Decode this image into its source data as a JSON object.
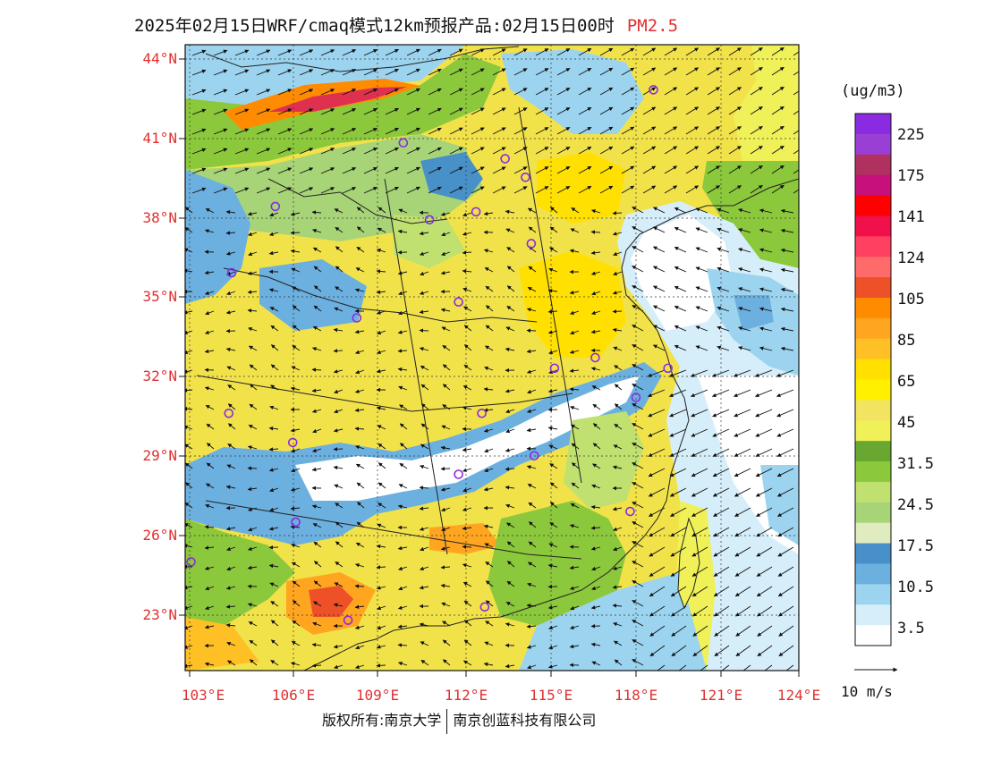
{
  "title": {
    "text": "2025年02月15日WRF/cmaq模式12km预报产品:02月15日00时",
    "species": "PM2.5"
  },
  "map": {
    "lat_labels": [
      "44°N",
      "41°N",
      "38°N",
      "35°N",
      "32°N",
      "29°N",
      "26°N",
      "23°N"
    ],
    "lon_labels": [
      "103°E",
      "106°E",
      "109°E",
      "112°E",
      "115°E",
      "118°E",
      "121°E",
      "124°E"
    ],
    "lat_values": [
      44,
      41,
      38,
      35,
      32,
      29,
      26,
      23
    ],
    "lon_values": [
      103,
      106,
      109,
      112,
      115,
      118,
      121,
      124
    ],
    "extent": {
      "lon_min": 102.9,
      "lon_max": 124.0,
      "lat_min": 20.9,
      "lat_max": 44.5
    },
    "city_markers": [
      {
        "lon": 119.0,
        "lat": 42.8
      },
      {
        "lon": 110.4,
        "lat": 40.8
      },
      {
        "lon": 113.9,
        "lat": 40.2
      },
      {
        "lon": 114.6,
        "lat": 39.5
      },
      {
        "lon": 106.0,
        "lat": 38.4
      },
      {
        "lon": 111.3,
        "lat": 37.9
      },
      {
        "lon": 112.9,
        "lat": 38.2
      },
      {
        "lon": 114.8,
        "lat": 37.0
      },
      {
        "lon": 104.5,
        "lat": 35.9
      },
      {
        "lon": 112.3,
        "lat": 34.8
      },
      {
        "lon": 108.8,
        "lat": 34.2
      },
      {
        "lon": 117.0,
        "lat": 32.7
      },
      {
        "lon": 115.6,
        "lat": 32.3
      },
      {
        "lon": 119.5,
        "lat": 32.3
      },
      {
        "lon": 118.4,
        "lat": 31.2
      },
      {
        "lon": 104.4,
        "lat": 30.6
      },
      {
        "lon": 113.1,
        "lat": 30.6
      },
      {
        "lon": 106.6,
        "lat": 29.5
      },
      {
        "lon": 114.9,
        "lat": 29.0
      },
      {
        "lon": 112.3,
        "lat": 28.3
      },
      {
        "lon": 106.7,
        "lat": 26.5
      },
      {
        "lon": 118.2,
        "lat": 26.9
      },
      {
        "lon": 103.1,
        "lat": 25.0
      },
      {
        "lon": 113.2,
        "lat": 23.3
      },
      {
        "lon": 108.5,
        "lat": 22.8
      }
    ]
  },
  "colorbar": {
    "unit": "(ug/m3)",
    "colors": [
      "#8a2be2",
      "#9a3fd6",
      "#b03060",
      "#c8107a",
      "#ff0000",
      "#f0104a",
      "#ff4060",
      "#ff6a6a",
      "#ee5028",
      "#ff8c00",
      "#ffa520",
      "#ffc025",
      "#ffe000",
      "#fff000",
      "#f2e460",
      "#f0f058",
      "#68a830",
      "#8cc83c",
      "#c0e070",
      "#a8d478",
      "#e0ecc0",
      "#4890c8",
      "#6cb0e0",
      "#9cd4f0",
      "#d6eefa",
      "#ffffff"
    ],
    "labels": [
      "225",
      "175",
      "141",
      "124",
      "105",
      "85",
      "65",
      "45",
      "31.5",
      "24.5",
      "17.5",
      "10.5",
      "3.5"
    ]
  },
  "wind_legend": {
    "label": "10 m/s"
  },
  "copyright": {
    "left": "版权所有:南京大学",
    "right": "南京创蓝科技有限公司"
  }
}
